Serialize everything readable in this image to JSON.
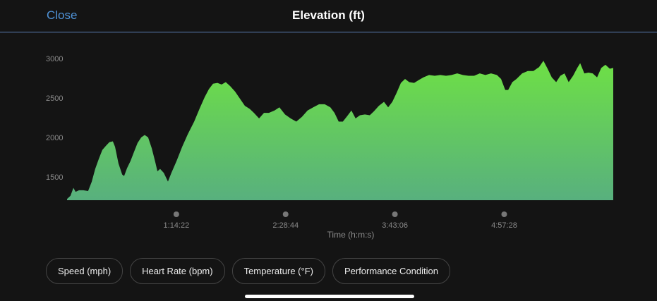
{
  "header": {
    "close": "Close"
  },
  "chart_data": {
    "type": "area",
    "title": "Elevation (ft)",
    "x_label": "Time (h:m:s)",
    "x": [
      0,
      140,
      260,
      350,
      490,
      660,
      860,
      1010,
      1150,
      1300,
      1440,
      1580,
      1730,
      1870,
      1960,
      2100,
      2250,
      2330,
      2450,
      2590,
      2740,
      2880,
      3030,
      3170,
      3310,
      3460,
      3600,
      3690,
      3800,
      3950,
      4120,
      4260,
      4470,
      4700,
      4930,
      5190,
      5420,
      5620,
      5790,
      5960,
      6140,
      6310,
      6480,
      6660,
      6860,
      7060,
      7260,
      7460,
      7630,
      7840,
      8040,
      8240,
      8470,
      8670,
      8900,
      9130,
      9360,
      9590,
      9820,
      10050,
      10290,
      10520,
      10750,
      10920,
      11090,
      11260,
      11440,
      11610,
      11780,
      11960,
      12160,
      12360,
      12530,
      12730,
      12940,
      13110,
      13280,
      13450,
      13630,
      13800,
      13970,
      14170,
      14380,
      14550,
      14780,
      15010,
      15240,
      15470,
      15700,
      15930,
      16160,
      16390,
      16620,
      16850,
      17080,
      17310,
      17550,
      17720,
      17890,
      18010,
      18180,
      18350,
      18580,
      18810,
      19040,
      19270,
      19450,
      19620,
      19790,
      19970,
      20140,
      20310,
      20480,
      20660,
      20830,
      20950,
      21120,
      21290,
      21460,
      21640,
      21810,
      21980,
      22160,
      22300
    ],
    "values": [
      1230,
      1270,
      1370,
      1320,
      1340,
      1340,
      1330,
      1450,
      1610,
      1740,
      1850,
      1900,
      1950,
      1960,
      1890,
      1680,
      1540,
      1520,
      1620,
      1710,
      1830,
      1940,
      2010,
      2040,
      2010,
      1870,
      1700,
      1580,
      1610,
      1560,
      1450,
      1560,
      1710,
      1890,
      2050,
      2210,
      2380,
      2520,
      2620,
      2690,
      2700,
      2680,
      2710,
      2660,
      2590,
      2500,
      2410,
      2370,
      2320,
      2250,
      2320,
      2320,
      2350,
      2390,
      2300,
      2250,
      2210,
      2270,
      2350,
      2390,
      2430,
      2430,
      2390,
      2320,
      2210,
      2210,
      2280,
      2350,
      2250,
      2290,
      2300,
      2290,
      2340,
      2410,
      2460,
      2390,
      2460,
      2570,
      2700,
      2750,
      2710,
      2700,
      2740,
      2770,
      2800,
      2790,
      2800,
      2790,
      2800,
      2820,
      2800,
      2790,
      2790,
      2820,
      2800,
      2820,
      2800,
      2750,
      2610,
      2610,
      2710,
      2750,
      2820,
      2850,
      2850,
      2900,
      2980,
      2880,
      2770,
      2710,
      2790,
      2820,
      2710,
      2790,
      2890,
      2950,
      2820,
      2830,
      2820,
      2770,
      2890,
      2930,
      2880,
      2890
    ],
    "xlim": [
      0,
      22300
    ],
    "ylim": [
      1214,
      3000
    ],
    "xticks": [
      {
        "value": 4462,
        "label": "1:14:22"
      },
      {
        "value": 8924,
        "label": "2:28:44"
      },
      {
        "value": 13386,
        "label": "3:43:06"
      },
      {
        "value": 17848,
        "label": "4:57:28"
      }
    ],
    "yticks": [
      1500,
      2000,
      2500,
      3000
    ],
    "gradient": [
      "#6ee045",
      "#58b07e"
    ]
  },
  "buttons": [
    "Speed (mph)",
    "Heart Rate (bpm)",
    "Temperature (°F)",
    "Performance Condition"
  ]
}
